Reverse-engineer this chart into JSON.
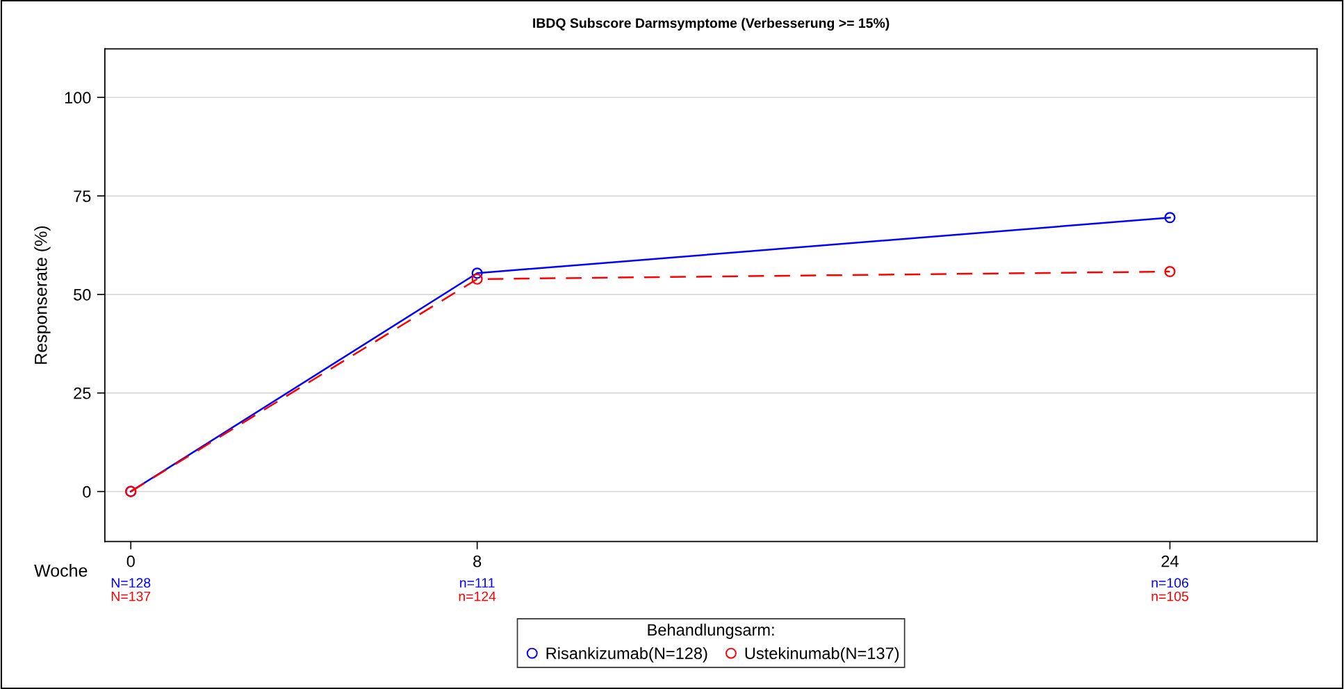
{
  "chart_data": {
    "type": "line",
    "title": "IBDQ Subscore Darmsymptome (Verbesserung >= 15%)",
    "xlabel": "Woche",
    "ylabel": "Responserate (%)",
    "legend_title": "Behandlungsarm:",
    "x": [
      0,
      8,
      24
    ],
    "series": [
      {
        "name": "Risankizumab(N=128)",
        "color": "#0000ff",
        "values": [
          0,
          55.4,
          69.5
        ],
        "line_style": "solid"
      },
      {
        "name": "Ustekinumab(N=137)",
        "color": "#ff0000",
        "values": [
          0,
          53.9,
          55.8
        ],
        "line_style": "dashed"
      }
    ],
    "annotations": [
      "N=128",
      "n=111",
      "n=106",
      "N=137",
      "n=124",
      "n=105"
    ],
    "xlim": [
      -0.6,
      27.4
    ],
    "ylim": [
      -12.7,
      112.3
    ],
    "xticks": [
      0,
      8,
      24
    ],
    "yticks": [
      0,
      25,
      50,
      75,
      100
    ],
    "grid": "y",
    "legend": "bottom",
    "marker": "circle"
  }
}
